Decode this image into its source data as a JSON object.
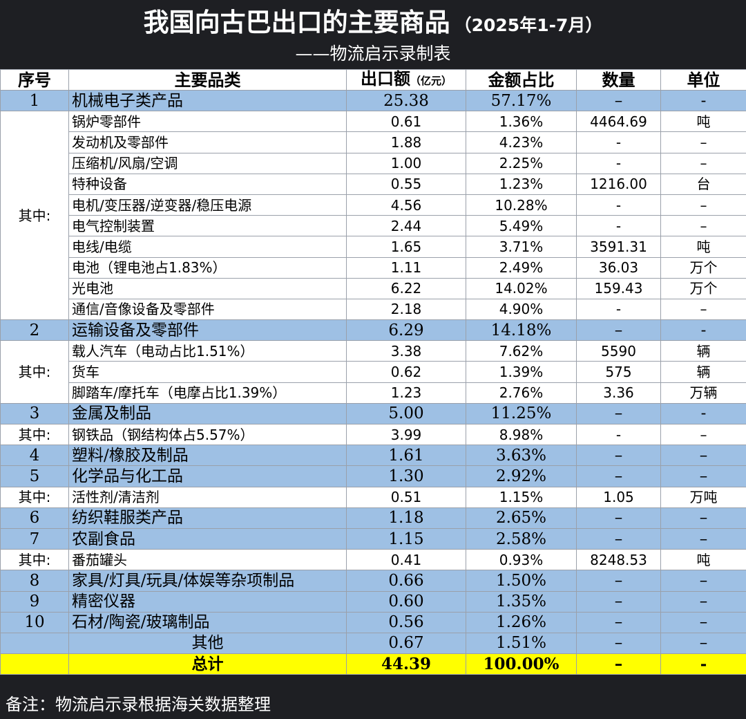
{
  "title": "我国向古巴出口的主要商品",
  "title_period": "（2025年1-7月）",
  "subtitle": "——物流启示录制表",
  "columns": {
    "no": "序号",
    "category": "主要品类",
    "value": "出口额",
    "value_unit": "（亿元）",
    "share": "金额占比",
    "qty": "数量",
    "unit": "单位"
  },
  "rows": [
    {
      "no": "1",
      "category": "机械电子类产品",
      "value": "25.38",
      "share": "57.17%",
      "qty": "–",
      "unit": "-"
    },
    {
      "category": "锅炉零部件",
      "value": "0.61",
      "share": "1.36%",
      "qty": "4464.69",
      "unit": "吨"
    },
    {
      "category": "发动机及零部件",
      "value": "1.88",
      "share": "4.23%",
      "qty": "-",
      "unit": "–"
    },
    {
      "category": "压缩机/风扇/空调",
      "value": "1.00",
      "share": "2.25%",
      "qty": "-",
      "unit": "–"
    },
    {
      "category": "特种设备",
      "value": "0.55",
      "share": "1.23%",
      "qty": "1216.00",
      "unit": "台"
    },
    {
      "category": "电机/变压器/逆变器/稳压电源",
      "value": "4.56",
      "share": "10.28%",
      "qty": "-",
      "unit": "–"
    },
    {
      "category": "电气控制装置",
      "value": "2.44",
      "share": "5.49%",
      "qty": "-",
      "unit": "–"
    },
    {
      "category": "电线/电缆",
      "value": "1.65",
      "share": "3.71%",
      "qty": "3591.31",
      "unit": "吨"
    },
    {
      "category": "电池（锂电池占1.83%）",
      "value": "1.11",
      "share": "2.49%",
      "qty": "36.03",
      "unit": "万个"
    },
    {
      "category": "光电池",
      "value": "6.22",
      "share": "14.02%",
      "qty": "159.43",
      "unit": "万个"
    },
    {
      "category": "通信/音像设备及零部件",
      "value": "2.18",
      "share": "4.90%",
      "qty": "-",
      "unit": "–"
    },
    {
      "no": "2",
      "category": "运输设备及零部件",
      "value": "6.29",
      "share": "14.18%",
      "qty": "–",
      "unit": "-"
    },
    {
      "category": "载人汽车（电动占比1.51%）",
      "value": "3.38",
      "share": "7.62%",
      "qty": "5590",
      "unit": "辆"
    },
    {
      "category": "货车",
      "value": "0.62",
      "share": "1.39%",
      "qty": "575",
      "unit": "辆"
    },
    {
      "category": "脚踏车/摩托车（电摩占比1.39%）",
      "value": "1.23",
      "share": "2.76%",
      "qty": "3.36",
      "unit": "万辆"
    },
    {
      "no": "3",
      "category": "金属及制品",
      "value": "5.00",
      "share": "11.25%",
      "qty": "–",
      "unit": "-"
    },
    {
      "category": "钢铁品（钢结构体占5.57%）",
      "value": "3.99",
      "share": "8.98%",
      "qty": "-",
      "unit": "–"
    },
    {
      "no": "4",
      "category": "塑料/橡胶及制品",
      "value": "1.61",
      "share": "3.63%",
      "qty": "–",
      "unit": "–"
    },
    {
      "no": "5",
      "category": "化学品与化工品",
      "value": "1.30",
      "share": "2.92%",
      "qty": "–",
      "unit": "–"
    },
    {
      "category": "活性剂/清洁剂",
      "value": "0.51",
      "share": "1.15%",
      "qty": "1.05",
      "unit": "万吨"
    },
    {
      "no": "6",
      "category": "纺织鞋服类产品",
      "value": "1.18",
      "share": "2.65%",
      "qty": "–",
      "unit": "–"
    },
    {
      "no": "7",
      "category": "农副食品",
      "value": "1.15",
      "share": "2.58%",
      "qty": "–",
      "unit": "–"
    },
    {
      "category": "番茄罐头",
      "value": "0.41",
      "share": "0.93%",
      "qty": "8248.53",
      "unit": "吨"
    },
    {
      "no": "8",
      "category": "家具/灯具/玩具/体娱等杂项制品",
      "value": "0.66",
      "share": "1.50%",
      "qty": "–",
      "unit": "–"
    },
    {
      "no": "9",
      "category": "精密仪器",
      "value": "0.60",
      "share": "1.35%",
      "qty": "–",
      "unit": "–"
    },
    {
      "no": "10",
      "category": "石材/陶瓷/玻璃制品",
      "value": "0.56",
      "share": "1.26%",
      "qty": "–",
      "unit": "–"
    },
    {
      "category": "其他",
      "value": "0.67",
      "share": "1.51%",
      "qty": "–",
      "unit": "–"
    }
  ],
  "group_label": "其中:",
  "total": {
    "label": "总计",
    "value": "44.39",
    "share": "100.00%",
    "qty": "–",
    "unit": "-"
  },
  "footer": "备注：物流启示录根据海关数据整理",
  "colors": {
    "main_row": "#9ec0e4",
    "sub_row": "#ffffff",
    "total_row": "#ffff00",
    "background": "#1e1f23"
  }
}
